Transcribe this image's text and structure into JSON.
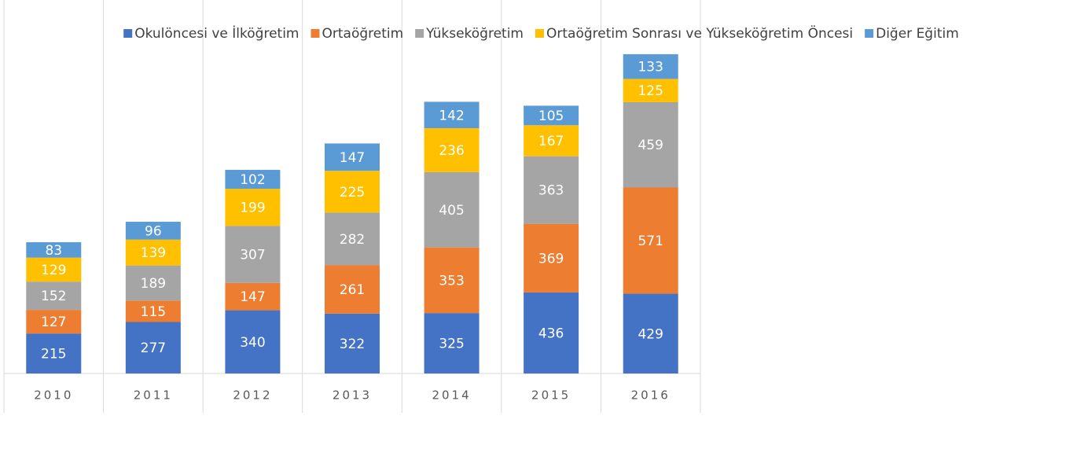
{
  "chart_data": {
    "type": "stacked_bar",
    "categories": [
      "2010",
      "2011",
      "2012",
      "2013",
      "2014",
      "2015",
      "2016"
    ],
    "series": [
      {
        "name": "Okulöncesi ve İlköğretim",
        "color": "#4472c4",
        "values": [
          215,
          277,
          340,
          322,
          325,
          436,
          429
        ]
      },
      {
        "name": "Ortaöğretim",
        "color": "#ed7d31",
        "values": [
          127,
          115,
          147,
          261,
          353,
          369,
          571
        ]
      },
      {
        "name": "Yükseköğretim",
        "color": "#a5a5a5",
        "values": [
          152,
          189,
          307,
          282,
          405,
          363,
          459
        ]
      },
      {
        "name": "Ortaöğretim Sonrası ve Yükseköğretim Öncesi",
        "color": "#ffc000",
        "values": [
          129,
          139,
          199,
          225,
          236,
          167,
          125
        ]
      },
      {
        "name": "Diğer Eğitim",
        "color": "#5b9bd5",
        "values": [
          83,
          96,
          102,
          147,
          142,
          105,
          133
        ]
      }
    ],
    "ylim": [
      0,
      2000
    ],
    "legend": "top"
  }
}
